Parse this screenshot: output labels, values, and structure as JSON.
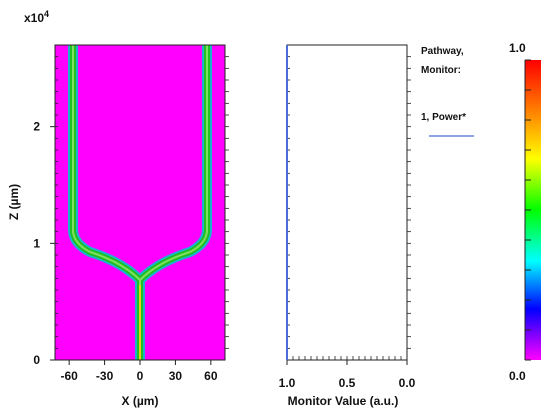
{
  "chart_data": [
    {
      "type": "heatmap",
      "description_labels_only": true,
      "y_exponent": "x10",
      "y_exponent_power": "4",
      "xlabel": "X (µm)",
      "ylabel": "Z (µm)",
      "x_ticks": [
        "-60",
        "-30",
        "0",
        "30",
        "60"
      ],
      "x_tick_values": [
        -60,
        -30,
        0,
        30,
        60
      ],
      "y_ticks": [
        "0",
        "1",
        "2"
      ],
      "y_tick_values": [
        0,
        1,
        2
      ],
      "xlim": [
        -72,
        72
      ],
      "ylim": [
        0,
        2.7
      ]
    },
    {
      "type": "line",
      "xlabel": "Monitor Value (a.u.)",
      "x_ticks": [
        "1.0",
        "0.5",
        "0.0"
      ],
      "x_tick_values": [
        1.0,
        0.5,
        0.0
      ],
      "xlim": [
        1.0,
        0.0
      ],
      "ylim": [
        0,
        2.7
      ],
      "legend_title_1": "Pathway,",
      "legend_title_2": "Monitor:",
      "legend_position": "right",
      "series": [
        {
          "name": "1, Power*",
          "color": "#4a6bd8",
          "x": [
            1.0,
            1.0,
            1.0
          ],
          "y": [
            0,
            1.5,
            2.7
          ]
        }
      ]
    },
    {
      "type": "colorbar",
      "max_label": "1.0",
      "min_label": "0.0",
      "colors_top_to_bottom": [
        "#ff0000",
        "#ff8000",
        "#ffff00",
        "#00ff00",
        "#00ffff",
        "#0000ff",
        "#ff00ff"
      ]
    }
  ]
}
